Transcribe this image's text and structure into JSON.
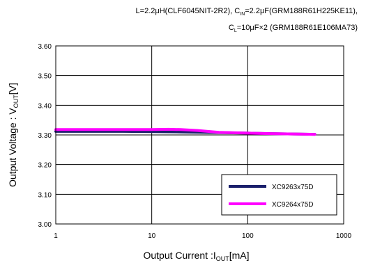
{
  "conditions": {
    "line1": "L=2.2μH(CLF6045NIT-2R2),  CIN=2.2μF(GRM188R61H225KE11),",
    "line2": "CL=10μF×2 (GRM188R61E106MA73)"
  },
  "chart_data": {
    "type": "line",
    "xlabel": "Output Current :IOUT[mA]",
    "ylabel": "Output Voltage : VOUT[V]",
    "x_scale": "log",
    "xlim": [
      1,
      1000
    ],
    "ylim": [
      3.0,
      3.6
    ],
    "x_ticks": [
      "1",
      "10",
      "100",
      "1000"
    ],
    "y_ticks": [
      "3.00",
      "3.10",
      "3.20",
      "3.30",
      "3.40",
      "3.50",
      "3.60"
    ],
    "grid": true,
    "legend_position": "bottom-right",
    "series": [
      {
        "name": "XC9263x75D",
        "color": "#1a1f6b",
        "x": [
          1,
          2,
          5,
          10,
          20,
          50,
          100,
          200,
          500
        ],
        "y": [
          3.312,
          3.312,
          3.312,
          3.311,
          3.31,
          3.308,
          3.306,
          3.304,
          3.302
        ]
      },
      {
        "name": "XC9264x75D",
        "color": "#ff00ff",
        "x": [
          1,
          2,
          5,
          10,
          15,
          20,
          30,
          50,
          100,
          200,
          500
        ],
        "y": [
          3.318,
          3.318,
          3.318,
          3.318,
          3.319,
          3.318,
          3.315,
          3.309,
          3.306,
          3.304,
          3.302
        ]
      }
    ]
  }
}
